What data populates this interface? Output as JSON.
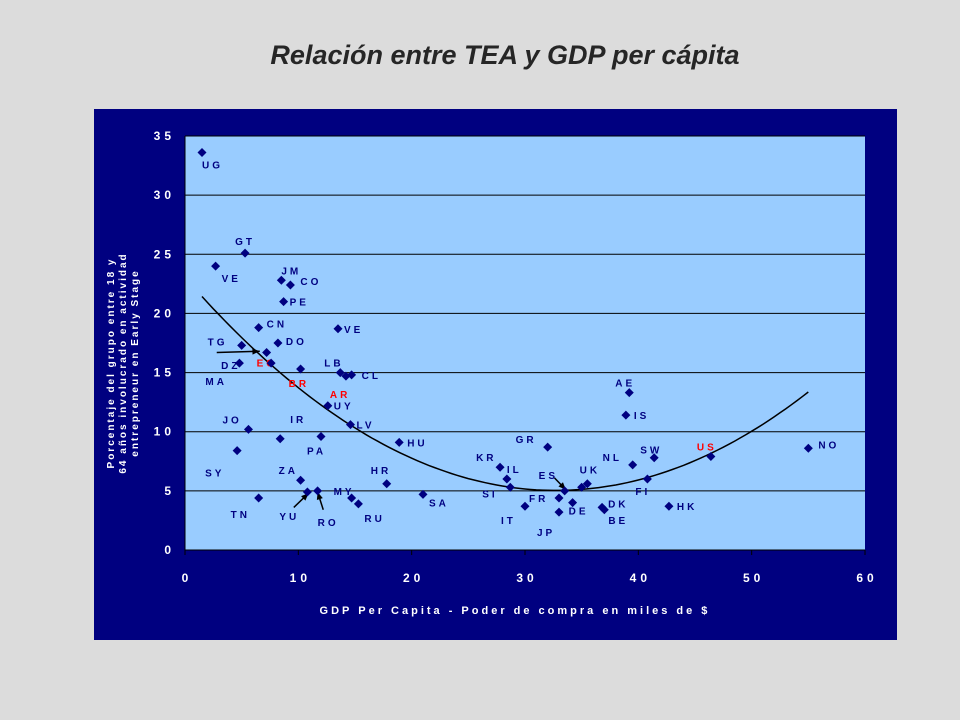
{
  "title": "Relación entre TEA y GDP per cápita",
  "colors": {
    "page_bg": "#dcdcdc",
    "frame_bg": "#000080",
    "plot_bg": "#99ccff",
    "marker": "#000080",
    "highlight_label": "#ff0000",
    "label": "#000080",
    "axis_text": "#ffffff",
    "gridline": "#000000",
    "trend": "#000000"
  },
  "chart_data": {
    "type": "scatter",
    "title": "Relación entre TEA y GDP per cápita",
    "xlabel": "GDP Per Capita - Poder de compra en miles de $",
    "ylabel_lines": [
      "Porcentaje del grupo entre 18 y",
      "64 años involucrado en actividad",
      "entrepreneur en Early Stage"
    ],
    "xlim": [
      0,
      60
    ],
    "ylim": [
      0,
      35
    ],
    "xticks": [
      "0",
      "10",
      "20",
      "30",
      "40",
      "50",
      "60"
    ],
    "yticks": [
      "0",
      "5",
      "10",
      "15",
      "20",
      "25",
      "30",
      "35"
    ],
    "grid": "horizontal",
    "highlighted": [
      "EC",
      "BR",
      "AR",
      "US"
    ],
    "points": [
      {
        "label": "UG",
        "x": 1.5,
        "y": 33.6
      },
      {
        "label": "GT",
        "x": 5.3,
        "y": 25.1
      },
      {
        "label": "VE",
        "x": 2.7,
        "y": 24.0
      },
      {
        "label": "JM",
        "x": 8.5,
        "y": 22.8
      },
      {
        "label": "CO",
        "x": 9.3,
        "y": 22.4
      },
      {
        "label": "PE",
        "x": 8.7,
        "y": 21.0
      },
      {
        "label": "CN",
        "x": 6.5,
        "y": 18.8
      },
      {
        "label": "VE",
        "x": 13.5,
        "y": 18.7
      },
      {
        "label": "DO",
        "x": 8.2,
        "y": 17.5
      },
      {
        "label": "TG",
        "x": 5.0,
        "y": 17.3
      },
      {
        "label": "EC",
        "x": 7.2,
        "y": 16.7
      },
      {
        "label": "MA",
        "x": 4.8,
        "y": 15.8
      },
      {
        "label": "DZ",
        "x": 7.6,
        "y": 15.8
      },
      {
        "label": "BR",
        "x": 10.2,
        "y": 15.3
      },
      {
        "label": "LB",
        "x": 13.7,
        "y": 15.0
      },
      {
        "label": "CL",
        "x": 14.7,
        "y": 14.8
      },
      {
        "label": "AR",
        "x": 14.2,
        "y": 14.7
      },
      {
        "label": "UY",
        "x": 12.6,
        "y": 12.2
      },
      {
        "label": "LV",
        "x": 14.6,
        "y": 10.6
      },
      {
        "label": "JO",
        "x": 5.6,
        "y": 10.2
      },
      {
        "label": "IR",
        "x": 8.4,
        "y": 9.4
      },
      {
        "label": "PA",
        "x": 12.0,
        "y": 9.6
      },
      {
        "label": "HU",
        "x": 18.9,
        "y": 9.1
      },
      {
        "label": "SY",
        "x": 4.6,
        "y": 8.4
      },
      {
        "label": "TN",
        "x": 6.5,
        "y": 4.4
      },
      {
        "label": "ZA",
        "x": 10.2,
        "y": 5.9
      },
      {
        "label": "YU",
        "x": 10.8,
        "y": 4.9
      },
      {
        "label": "MY",
        "x": 11.7,
        "y": 5.0
      },
      {
        "label": "RO",
        "x": 14.7,
        "y": 4.4
      },
      {
        "label": "RU",
        "x": 15.3,
        "y": 3.9
      },
      {
        "label": "HR",
        "x": 17.8,
        "y": 5.6
      },
      {
        "label": "SA",
        "x": 21.0,
        "y": 4.7
      },
      {
        "label": "GR",
        "x": 32.0,
        "y": 8.7
      },
      {
        "label": "KR",
        "x": 27.8,
        "y": 7.0
      },
      {
        "label": "IL",
        "x": 28.4,
        "y": 6.0
      },
      {
        "label": "SI",
        "x": 28.7,
        "y": 5.3
      },
      {
        "label": "IT",
        "x": 30.0,
        "y": 3.7
      },
      {
        "label": "ES",
        "x": 33.5,
        "y": 5.0
      },
      {
        "label": "FR",
        "x": 33.0,
        "y": 4.4
      },
      {
        "label": "JP",
        "x": 33.0,
        "y": 3.2
      },
      {
        "label": "UK",
        "x": 35.0,
        "y": 5.3
      },
      {
        "label": "DE",
        "x": 34.2,
        "y": 4.0
      },
      {
        "label": "UK",
        "x": 35.5,
        "y": 5.6
      },
      {
        "label": "DK",
        "x": 36.8,
        "y": 3.6
      },
      {
        "label": "BE",
        "x": 37.0,
        "y": 3.4
      },
      {
        "label": "AE",
        "x": 39.2,
        "y": 13.3
      },
      {
        "label": "IS",
        "x": 38.9,
        "y": 11.4
      },
      {
        "label": "NL",
        "x": 39.5,
        "y": 7.2
      },
      {
        "label": "SW",
        "x": 41.4,
        "y": 7.8
      },
      {
        "label": "FI",
        "x": 40.8,
        "y": 6.0
      },
      {
        "label": "HK",
        "x": 42.7,
        "y": 3.7
      },
      {
        "label": "US",
        "x": 46.4,
        "y": 7.9
      },
      {
        "label": "NO",
        "x": 55.0,
        "y": 8.6
      }
    ]
  }
}
